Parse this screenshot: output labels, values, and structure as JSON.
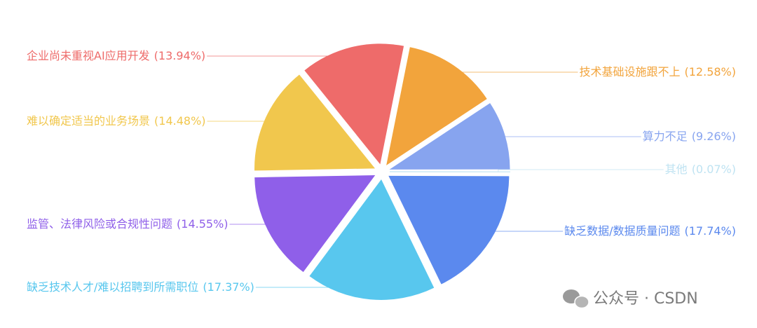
{
  "chart_data": {
    "type": "pie",
    "categories": [
      "技术基础设施跟不上",
      "算力不足",
      "其他",
      "缺乏数据/数据质量问题",
      "缺乏技术人才/难以招聘到所需职位",
      "监管、法律风险或合规性问题",
      "难以确定适当的业务场景",
      "企业尚未重视AI应用开发"
    ],
    "values": [
      12.58,
      9.26,
      0.07,
      17.74,
      17.37,
      14.55,
      14.48,
      13.94
    ],
    "value_labels": [
      "(12.58%)",
      "(9.26%)",
      "(0.07%)",
      "(17.74%)",
      "(17.37%)",
      "(14.55%)",
      "(14.48%)",
      "(13.94%)"
    ],
    "colors": [
      "#f2a43c",
      "#87a4ef",
      "#bfe3f2",
      "#5b89ee",
      "#58c7ee",
      "#8f5fe9",
      "#f1c74d",
      "#ee6b6a"
    ]
  },
  "watermark": "公众号 · CSDN"
}
